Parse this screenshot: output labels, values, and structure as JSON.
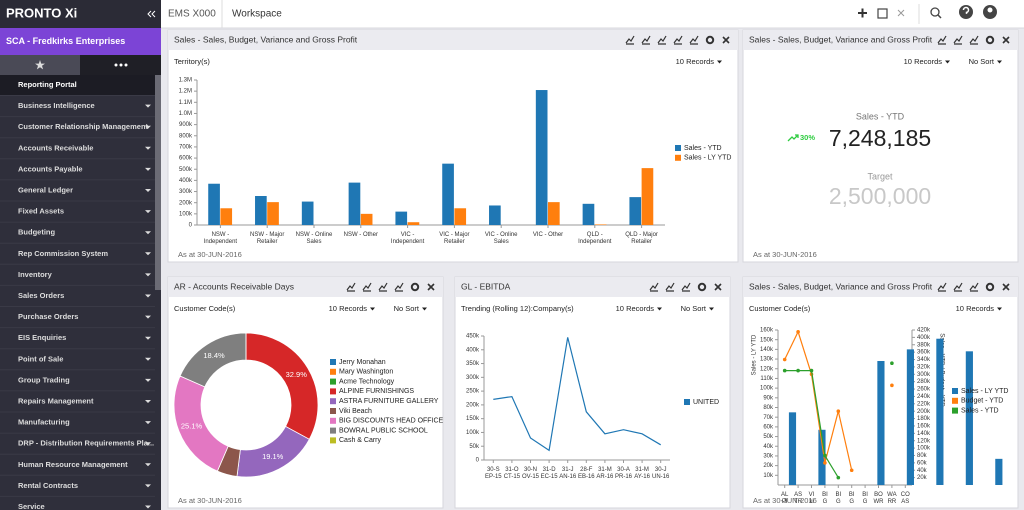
{
  "header": {
    "logo": "PRONTO Xi",
    "tabs": [
      "EMS X000",
      "Workspace"
    ]
  },
  "sidebar": {
    "company": "SCA - Fredkirks Enterprises",
    "menu": [
      "Reporting Portal",
      "Business Intelligence",
      "Customer Relationship Management",
      "Accounts Receivable",
      "Accounts Payable",
      "General Ledger",
      "Fixed Assets",
      "Budgeting",
      "Rep Commission System",
      "Inventory",
      "Sales Orders",
      "Purchase Orders",
      "EIS Enquiries",
      "Point of Sale",
      "Group Trading",
      "Repairs Management",
      "Manufacturing",
      "DRP - Distribution Requirements Pla...",
      "Human Resource Management",
      "Rental Contracts",
      "Service"
    ]
  },
  "chart_data": [
    {
      "type": "bar",
      "title": "Sales - Sales, Budget, Variance and Gross Profit",
      "axis_label": "Territory(s)",
      "controls": [
        "10 Records"
      ],
      "categories": [
        "NSW - Independent",
        "NSW - Major Retailer",
        "NSW - Online Sales",
        "NSW - Other",
        "VIC - Independent",
        "VIC - Major Retailer",
        "VIC - Online Sales",
        "VIC - Other",
        "QLD - Independent",
        "QLD - Major Retailer"
      ],
      "series": [
        {
          "name": "Sales - YTD",
          "color": "#1f77b4",
          "values": [
            370000,
            260000,
            210000,
            380000,
            120000,
            550000,
            175000,
            1210000,
            190000,
            250000
          ]
        },
        {
          "name": "Sales - LY YTD",
          "color": "#ff7f0e",
          "values": [
            150000,
            205000,
            null,
            100000,
            25000,
            150000,
            null,
            205000,
            5000,
            510000
          ]
        }
      ],
      "ylim": [
        0,
        1300000
      ],
      "yticks": [
        0,
        {
          "value": 100000,
          "label": "100k"
        },
        {
          "value": 200000,
          "label": "200k"
        },
        {
          "value": 300000,
          "label": "300k"
        },
        {
          "value": 400000,
          "label": "400k"
        },
        {
          "value": 500000,
          "label": "500k"
        },
        {
          "value": 600000,
          "label": "600k"
        },
        {
          "value": 700000,
          "label": "700k"
        },
        {
          "value": 800000,
          "label": "800k"
        },
        {
          "value": 900000,
          "label": "900k"
        },
        {
          "value": 1000000,
          "label": "1.0M"
        },
        {
          "value": 1100000,
          "label": "1.1M"
        },
        {
          "value": 1200000,
          "label": "1.2M"
        },
        {
          "value": 1300000,
          "label": "1.3M"
        }
      ],
      "footnote": "As at 30-JUN-2016"
    },
    {
      "type": "kpi",
      "title": "Sales - Sales, Budget, Variance and Gross Profit",
      "controls": [
        "10 Records",
        "No Sort"
      ],
      "label": "Sales - YTD",
      "value": "7,248,185",
      "change": "30%",
      "target_label": "Target",
      "target": "2,500,000",
      "footnote": "As at 30-JUN-2016"
    },
    {
      "type": "pie",
      "title": "AR - Accounts Receivable Days",
      "axis_label": "Customer Code(s)",
      "controls": [
        "10 Records",
        "No Sort"
      ],
      "categories": [
        "Jerry Monahan",
        "Mary Washington",
        "Acme Technology",
        "ALPINE FURNISHINGS",
        "ASTRA FURNITURE GALLERY",
        "Viki Beach",
        "BIG DISCOUNTS HEAD OFFICE",
        "BOWRAL PUBLIC SCHOOL",
        "Cash & Carry"
      ],
      "values": [
        0,
        0,
        0,
        32.9,
        19.1,
        4.5,
        25.1,
        18.4,
        0
      ],
      "value_labels": [
        null,
        null,
        null,
        "32.9%",
        "19.1%",
        null,
        "25.1%",
        "18.4%",
        null
      ],
      "colors": [
        "#1f77b4",
        "#ff7f0e",
        "#2ca02c",
        "#d62728",
        "#9467bd",
        "#8c564b",
        "#e377c2",
        "#7f7f7f",
        "#bcbd22"
      ],
      "footnote": "As at 30-JUN-2016"
    },
    {
      "type": "line",
      "title": "GL - EBITDA",
      "axis_label": "Trending (Rolling 12):Company(s)",
      "controls": [
        "10 Records",
        "No Sort"
      ],
      "categories": [
        "30-SEP-15",
        "31-OCT-15",
        "30-NOV-15",
        "31-DEC-15",
        "31-JAN-16",
        "28-FEB-16",
        "31-MAR-16",
        "30-APR-16",
        "31-MAY-16",
        "30-JUN-16"
      ],
      "series": [
        {
          "name": "UNITED",
          "color": "#1f77b4",
          "values": [
            220000,
            230000,
            80000,
            35000,
            445000,
            175000,
            95000,
            110000,
            95000,
            55000
          ]
        }
      ],
      "ylim": [
        0,
        450000
      ],
      "yticks": [
        0,
        {
          "value": 50000,
          "label": "50k"
        },
        {
          "value": 100000,
          "label": "100k"
        },
        {
          "value": 150000,
          "label": "150k"
        },
        {
          "value": 200000,
          "label": "200k"
        },
        {
          "value": 250000,
          "label": "250k"
        },
        {
          "value": 300000,
          "label": "300k"
        },
        {
          "value": 350000,
          "label": "350k"
        },
        {
          "value": 400000,
          "label": "400k"
        },
        {
          "value": 450000,
          "label": "450k"
        }
      ]
    },
    {
      "type": "combo",
      "title": "Sales - Sales, Budget, Variance and Gross Profit",
      "axis_label": "Customer Code(s)",
      "controls": [
        "10 Records"
      ],
      "ylabel": "Sales - LY YTD",
      "y2label": "Sales - YTD / Budget - YTD",
      "categories": [
        "ALPI",
        "ASTR",
        "VIki",
        "BIG",
        "BIG",
        "BIG",
        "BIG",
        "BOWR",
        "WARR",
        "COAS"
      ],
      "series": [
        {
          "name": "Sales - LY YTD",
          "color": "#1f77b4",
          "values": [
            75000,
            57000,
            null,
            128000,
            140000,
            151000,
            138000,
            27000,
            null,
            73000
          ]
        },
        {
          "name": "Budget - YTD",
          "color": "#ff7f0e",
          "axis": "y2",
          "values": [
            340000,
            415000,
            300000,
            60000,
            200000,
            40000,
            null,
            null,
            270000,
            null
          ]
        },
        {
          "name": "Sales - YTD",
          "color": "#2ca02c",
          "axis": "y2",
          "values": [
            310000,
            310000,
            310000,
            80000,
            20000,
            null,
            null,
            null,
            330000,
            null
          ]
        }
      ],
      "ylim": [
        0,
        160000
      ],
      "yticks": [
        {
          "value": 10000,
          "label": "10k"
        },
        {
          "value": 20000,
          "label": "20k"
        },
        {
          "value": 30000,
          "label": "30k"
        },
        {
          "value": 40000,
          "label": "40k"
        },
        {
          "value": 50000,
          "label": "50k"
        },
        {
          "value": 60000,
          "label": "60k"
        },
        {
          "value": 70000,
          "label": "70k"
        },
        {
          "value": 80000,
          "label": "80k"
        },
        {
          "value": 90000,
          "label": "90k"
        },
        {
          "value": 100000,
          "label": "100k"
        },
        {
          "value": 110000,
          "label": "110k"
        },
        {
          "value": 120000,
          "label": "120k"
        },
        {
          "value": 130000,
          "label": "130k"
        },
        {
          "value": 140000,
          "label": "140k"
        },
        {
          "value": 150000,
          "label": "150k"
        },
        {
          "value": 160000,
          "label": "160k"
        }
      ],
      "y2lim": [
        0,
        420000
      ],
      "y2ticks": [
        {
          "value": 20000,
          "label": "20k"
        },
        {
          "value": 40000,
          "label": "40k"
        },
        {
          "value": 60000,
          "label": "60k"
        },
        {
          "value": 80000,
          "label": "80k"
        },
        {
          "value": 100000,
          "label": "100k"
        },
        {
          "value": 120000,
          "label": "120k"
        },
        {
          "value": 140000,
          "label": "140k"
        },
        {
          "value": 160000,
          "label": "160k"
        },
        {
          "value": 180000,
          "label": "180k"
        },
        {
          "value": 200000,
          "label": "200k"
        },
        {
          "value": 220000,
          "label": "220k"
        },
        {
          "value": 240000,
          "label": "240k"
        },
        {
          "value": 260000,
          "label": "260k"
        },
        {
          "value": 280000,
          "label": "280k"
        },
        {
          "value": 300000,
          "label": "300k"
        },
        {
          "value": 320000,
          "label": "320k"
        },
        {
          "value": 340000,
          "label": "340k"
        },
        {
          "value": 360000,
          "label": "360k"
        },
        {
          "value": 380000,
          "label": "380k"
        },
        {
          "value": 400000,
          "label": "400k"
        },
        {
          "value": 420000,
          "label": "420k"
        }
      ],
      "footnote": "As at 30-JUN-2016"
    }
  ]
}
